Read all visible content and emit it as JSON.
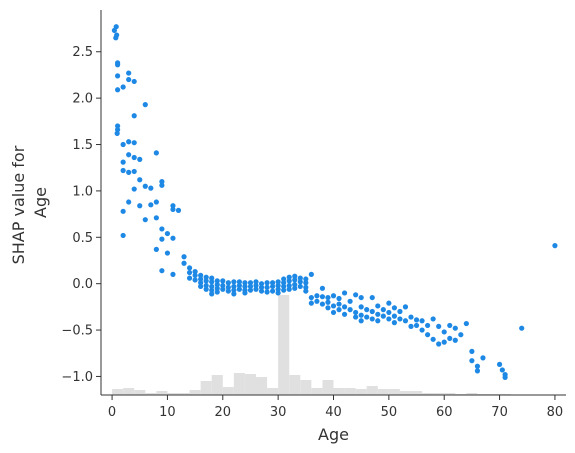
{
  "chart_data": {
    "type": "scatter",
    "title": "",
    "xlabel": "Age",
    "ylabel_lines": [
      "SHAP value for",
      "Age"
    ],
    "xlim": [
      -2,
      82
    ],
    "ylim": [
      -1.2,
      2.95
    ],
    "xticks": [
      0,
      10,
      20,
      30,
      40,
      50,
      60,
      70,
      80
    ],
    "yticks": [
      -1.0,
      -0.5,
      0.0,
      0.5,
      1.0,
      1.5,
      2.0,
      2.5
    ],
    "ytick_labels": [
      "−1.0",
      "−0.5",
      "0.0",
      "0.5",
      "1.0",
      "1.5",
      "2.0",
      "2.5"
    ],
    "point_color": "#1e88e5",
    "histogram_color": "#e0e0e0",
    "grid": false,
    "points": [
      [
        0.42,
        2.73
      ],
      [
        0.67,
        2.65
      ],
      [
        0.75,
        2.77
      ],
      [
        0.83,
        2.68
      ],
      [
        0.92,
        1.62
      ],
      [
        1,
        1.7
      ],
      [
        1,
        1.66
      ],
      [
        1,
        2.09
      ],
      [
        1,
        2.38
      ],
      [
        1,
        2.36
      ],
      [
        1,
        2.24
      ],
      [
        2,
        2.12
      ],
      [
        2,
        1.5
      ],
      [
        2,
        1.31
      ],
      [
        2,
        1.22
      ],
      [
        2,
        0.78
      ],
      [
        2,
        0.52
      ],
      [
        3,
        2.27
      ],
      [
        3,
        2.2
      ],
      [
        3,
        1.53
      ],
      [
        3,
        1.39
      ],
      [
        3,
        1.2
      ],
      [
        3,
        0.88
      ],
      [
        4,
        2.18
      ],
      [
        4,
        1.81
      ],
      [
        4,
        1.52
      ],
      [
        4,
        1.36
      ],
      [
        4,
        1.21
      ],
      [
        4,
        1.02
      ],
      [
        5,
        1.34
      ],
      [
        5,
        0.84
      ],
      [
        5,
        1.12
      ],
      [
        6,
        1.93
      ],
      [
        6,
        1.05
      ],
      [
        6,
        0.69
      ],
      [
        7,
        1.03
      ],
      [
        7,
        0.85
      ],
      [
        8,
        1.41
      ],
      [
        8,
        0.88
      ],
      [
        8,
        0.71
      ],
      [
        8,
        0.37
      ],
      [
        9,
        1.1
      ],
      [
        9,
        1.06
      ],
      [
        9,
        0.59
      ],
      [
        9,
        0.48
      ],
      [
        9,
        0.14
      ],
      [
        10,
        0.54
      ],
      [
        10,
        0.33
      ],
      [
        11,
        0.84
      ],
      [
        11,
        0.8
      ],
      [
        11,
        0.49
      ],
      [
        11,
        0.1
      ],
      [
        12,
        0.79
      ],
      [
        13,
        0.29
      ],
      [
        13,
        0.22
      ],
      [
        14,
        0.17
      ],
      [
        14,
        0.12
      ],
      [
        14,
        0.06
      ],
      [
        15,
        0.13
      ],
      [
        15,
        0.09
      ],
      [
        15,
        0.04
      ],
      [
        16,
        0.09
      ],
      [
        16,
        0.05
      ],
      [
        16,
        0.01
      ],
      [
        16,
        -0.03
      ],
      [
        17,
        0.07
      ],
      [
        17,
        0.03
      ],
      [
        17,
        -0.02
      ],
      [
        17,
        -0.06
      ],
      [
        18,
        0.06
      ],
      [
        18,
        0.02
      ],
      [
        18,
        -0.03
      ],
      [
        18,
        -0.07
      ],
      [
        18,
        -0.11
      ],
      [
        19,
        0.03
      ],
      [
        19,
        -0.01
      ],
      [
        19,
        -0.05
      ],
      [
        19,
        -0.09
      ],
      [
        20,
        0.03
      ],
      [
        20,
        -0.02
      ],
      [
        20,
        -0.06
      ],
      [
        21,
        0.01
      ],
      [
        21,
        -0.04
      ],
      [
        21,
        -0.08
      ],
      [
        22,
        0.02
      ],
      [
        22,
        -0.03
      ],
      [
        22,
        -0.07
      ],
      [
        22,
        -0.11
      ],
      [
        23,
        0.02
      ],
      [
        23,
        -0.02
      ],
      [
        23,
        -0.06
      ],
      [
        24,
        0.01
      ],
      [
        24,
        -0.03
      ],
      [
        24,
        -0.07
      ],
      [
        24,
        -0.1
      ],
      [
        25,
        0.01
      ],
      [
        25,
        -0.03
      ],
      [
        25,
        -0.07
      ],
      [
        26,
        0.02
      ],
      [
        26,
        -0.02
      ],
      [
        26,
        -0.06
      ],
      [
        27,
        0
      ],
      [
        27,
        -0.04
      ],
      [
        27,
        -0.08
      ],
      [
        28,
        0.01
      ],
      [
        28,
        -0.04
      ],
      [
        28,
        -0.09
      ],
      [
        29,
        0.01
      ],
      [
        29,
        -0.03
      ],
      [
        29,
        -0.08
      ],
      [
        30,
        0.02
      ],
      [
        30,
        -0.02
      ],
      [
        30,
        -0.06
      ],
      [
        30,
        -0.1
      ],
      [
        31,
        0.05
      ],
      [
        31,
        0.01
      ],
      [
        31,
        -0.03
      ],
      [
        31,
        -0.07
      ],
      [
        32,
        0.07
      ],
      [
        32,
        0.03
      ],
      [
        32,
        -0.02
      ],
      [
        32,
        -0.06
      ],
      [
        33,
        0.08
      ],
      [
        33,
        0.04
      ],
      [
        33,
        -0.01
      ],
      [
        33,
        -0.05
      ],
      [
        34,
        0.06
      ],
      [
        34,
        0.02
      ],
      [
        34,
        -0.03
      ],
      [
        35,
        0.05
      ],
      [
        35,
        0.01
      ],
      [
        35,
        -0.04
      ],
      [
        35,
        -0.08
      ],
      [
        36,
        0.1
      ],
      [
        36,
        -0.15
      ],
      [
        36,
        -0.21
      ],
      [
        37,
        -0.13
      ],
      [
        37,
        -0.19
      ],
      [
        38,
        -0.05
      ],
      [
        38,
        -0.14
      ],
      [
        38,
        -0.22
      ],
      [
        39,
        -0.15
      ],
      [
        39,
        -0.2
      ],
      [
        39,
        -0.26
      ],
      [
        40,
        -0.13
      ],
      [
        40,
        -0.24
      ],
      [
        40,
        -0.31
      ],
      [
        41,
        -0.16
      ],
      [
        41,
        -0.22
      ],
      [
        41,
        -0.28
      ],
      [
        42,
        -0.1
      ],
      [
        42,
        -0.25
      ],
      [
        42,
        -0.33
      ],
      [
        43,
        -0.19
      ],
      [
        43,
        -0.28
      ],
      [
        44,
        -0.12
      ],
      [
        44,
        -0.31
      ],
      [
        44,
        -0.36
      ],
      [
        45,
        -0.15
      ],
      [
        45,
        -0.25
      ],
      [
        45,
        -0.34
      ],
      [
        45,
        -0.4
      ],
      [
        46,
        -0.28
      ],
      [
        46,
        -0.36
      ],
      [
        47,
        -0.15
      ],
      [
        47,
        -0.3
      ],
      [
        47,
        -0.38
      ],
      [
        48,
        -0.24
      ],
      [
        48,
        -0.33
      ],
      [
        48,
        -0.4
      ],
      [
        49,
        -0.28
      ],
      [
        49,
        -0.35
      ],
      [
        50,
        -0.21
      ],
      [
        50,
        -0.31
      ],
      [
        50,
        -0.38
      ],
      [
        51,
        -0.26
      ],
      [
        51,
        -0.35
      ],
      [
        51,
        -0.42
      ],
      [
        52,
        -0.3
      ],
      [
        52,
        -0.38
      ],
      [
        53,
        -0.25
      ],
      [
        53,
        -0.4
      ],
      [
        54,
        -0.36
      ],
      [
        54,
        -0.46
      ],
      [
        55,
        -0.39
      ],
      [
        55,
        -0.45
      ],
      [
        56,
        -0.5
      ],
      [
        56,
        -0.4
      ],
      [
        57,
        -0.45
      ],
      [
        57,
        -0.55
      ],
      [
        58,
        -0.38
      ],
      [
        58,
        -0.6
      ],
      [
        59,
        -0.65
      ],
      [
        59,
        -0.46
      ],
      [
        60,
        -0.63
      ],
      [
        60,
        -0.52
      ],
      [
        61,
        -0.59
      ],
      [
        61,
        -0.45
      ],
      [
        62,
        -0.61
      ],
      [
        62,
        -0.48
      ],
      [
        63,
        -0.55
      ],
      [
        64,
        -0.43
      ],
      [
        65,
        -0.73
      ],
      [
        65,
        -0.83
      ],
      [
        66,
        -0.89
      ],
      [
        66,
        -0.94
      ],
      [
        67,
        -0.8
      ],
      [
        70,
        -0.87
      ],
      [
        70.5,
        -0.93
      ],
      [
        71,
        -0.98
      ],
      [
        71,
        -1.01
      ],
      [
        74,
        -0.48
      ],
      [
        80,
        0.41
      ]
    ],
    "histogram": {
      "bin_edges": [
        0,
        2,
        4,
        6,
        8,
        10,
        12,
        14,
        16,
        18,
        20,
        22,
        24,
        26,
        28,
        30,
        32,
        34,
        36,
        38,
        40,
        42,
        44,
        46,
        48,
        50,
        52,
        54,
        56,
        58,
        60,
        62,
        64,
        66,
        68,
        70,
        72,
        74,
        76,
        78,
        80
      ],
      "relative_heights": [
        0.06,
        0.07,
        0.05,
        0.02,
        0.04,
        0.02,
        0.02,
        0.05,
        0.14,
        0.2,
        0.08,
        0.22,
        0.21,
        0.18,
        0.07,
        1.0,
        0.2,
        0.15,
        0.07,
        0.15,
        0.07,
        0.07,
        0.06,
        0.09,
        0.06,
        0.06,
        0.04,
        0.04,
        0.02,
        0.02,
        0.02,
        0.01,
        0.02,
        0.01,
        0.01,
        0.01,
        0.005,
        0.005,
        0,
        0.005
      ]
    }
  }
}
